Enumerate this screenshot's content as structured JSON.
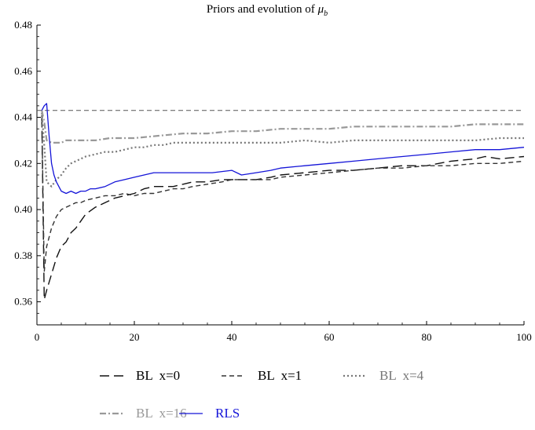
{
  "chart_data": {
    "type": "line",
    "title": "Priors and evolution of",
    "title_symbol": "μ",
    "title_subscript": "b",
    "xlabel": "",
    "ylabel": "",
    "xlim": [
      0,
      100
    ],
    "ylim": [
      0.35,
      0.48
    ],
    "xticks": [
      0,
      20,
      40,
      60,
      80,
      100
    ],
    "xtick_labels": [
      "0",
      "20",
      "40",
      "60",
      "80",
      "100"
    ],
    "yticks": [
      0.36,
      0.38,
      0.4,
      0.42,
      0.44,
      0.46,
      0.48
    ],
    "ytick_labels": [
      "0.36",
      "0.38",
      "0.40",
      "0.42",
      "0.44",
      "0.46",
      "0.48"
    ],
    "grid": false,
    "legend_position": "bottom",
    "reference_line": {
      "y": 0.443,
      "color": "#555555"
    },
    "series": [
      {
        "name": "BL  x=0",
        "color": "#111111",
        "style": "longdash",
        "x": [
          1,
          1.5,
          2,
          3,
          4,
          5,
          6,
          7,
          8,
          9,
          10,
          12,
          14,
          16,
          18,
          20,
          22,
          24,
          26,
          28,
          30,
          32,
          35,
          38,
          40,
          43,
          45,
          48,
          50,
          55,
          60,
          65,
          70,
          75,
          80,
          85,
          90,
          92,
          95,
          100
        ],
        "y": [
          0.44,
          0.361,
          0.365,
          0.372,
          0.379,
          0.384,
          0.386,
          0.39,
          0.392,
          0.395,
          0.398,
          0.401,
          0.403,
          0.405,
          0.406,
          0.407,
          0.409,
          0.41,
          0.41,
          0.41,
          0.411,
          0.412,
          0.412,
          0.413,
          0.413,
          0.413,
          0.413,
          0.414,
          0.415,
          0.416,
          0.417,
          0.417,
          0.418,
          0.419,
          0.419,
          0.421,
          0.422,
          0.423,
          0.422,
          0.423
        ]
      },
      {
        "name": "BL  x=1",
        "color": "#333333",
        "style": "dash",
        "x": [
          1,
          1.5,
          2,
          3,
          4,
          5,
          6,
          7,
          8,
          9,
          10,
          12,
          14,
          16,
          18,
          20,
          22,
          24,
          26,
          28,
          30,
          32,
          35,
          38,
          40,
          43,
          45,
          48,
          50,
          55,
          60,
          65,
          70,
          75,
          80,
          85,
          90,
          95,
          100
        ],
        "y": [
          0.441,
          0.373,
          0.384,
          0.392,
          0.397,
          0.4,
          0.401,
          0.402,
          0.403,
          0.403,
          0.404,
          0.405,
          0.406,
          0.406,
          0.407,
          0.406,
          0.407,
          0.407,
          0.408,
          0.409,
          0.409,
          0.41,
          0.411,
          0.412,
          0.413,
          0.413,
          0.413,
          0.413,
          0.414,
          0.415,
          0.416,
          0.417,
          0.418,
          0.418,
          0.419,
          0.419,
          0.42,
          0.42,
          0.421
        ]
      },
      {
        "name": "BL  x=4",
        "color": "#777777",
        "style": "dot",
        "x": [
          1,
          1.5,
          2,
          3,
          4,
          5,
          6,
          7,
          8,
          10,
          12,
          14,
          16,
          18,
          20,
          22,
          24,
          26,
          28,
          30,
          35,
          40,
          45,
          50,
          55,
          60,
          65,
          70,
          75,
          80,
          85,
          90,
          95,
          100
        ],
        "y": [
          0.442,
          0.428,
          0.412,
          0.41,
          0.413,
          0.415,
          0.418,
          0.42,
          0.421,
          0.423,
          0.424,
          0.425,
          0.425,
          0.426,
          0.427,
          0.427,
          0.428,
          0.428,
          0.429,
          0.429,
          0.429,
          0.429,
          0.429,
          0.429,
          0.43,
          0.429,
          0.43,
          0.43,
          0.43,
          0.43,
          0.43,
          0.43,
          0.431,
          0.431
        ]
      },
      {
        "name": "BL  x=16",
        "color": "#999999",
        "style": "dashdot",
        "x": [
          1,
          1.5,
          2,
          3,
          4,
          5,
          6,
          8,
          10,
          12,
          15,
          18,
          20,
          25,
          30,
          35,
          40,
          45,
          50,
          55,
          60,
          65,
          70,
          75,
          80,
          85,
          90,
          95,
          100
        ],
        "y": [
          0.443,
          0.438,
          0.43,
          0.429,
          0.429,
          0.429,
          0.43,
          0.43,
          0.43,
          0.43,
          0.431,
          0.431,
          0.431,
          0.432,
          0.433,
          0.433,
          0.434,
          0.434,
          0.435,
          0.435,
          0.435,
          0.436,
          0.436,
          0.436,
          0.436,
          0.436,
          0.437,
          0.437,
          0.437
        ]
      },
      {
        "name": "RLS",
        "color": "#1414d8",
        "style": "solid",
        "x": [
          1,
          1.5,
          2,
          2.5,
          3,
          3.5,
          4,
          5,
          6,
          7,
          8,
          9,
          10,
          11,
          12,
          14,
          16,
          18,
          20,
          22,
          24,
          26,
          28,
          30,
          33,
          36,
          40,
          42,
          45,
          48,
          50,
          55,
          60,
          65,
          70,
          75,
          80,
          85,
          90,
          95,
          100
        ],
        "y": [
          0.443,
          0.445,
          0.446,
          0.432,
          0.42,
          0.415,
          0.412,
          0.408,
          0.407,
          0.408,
          0.407,
          0.408,
          0.408,
          0.409,
          0.409,
          0.41,
          0.412,
          0.413,
          0.414,
          0.415,
          0.416,
          0.416,
          0.416,
          0.416,
          0.416,
          0.416,
          0.417,
          0.415,
          0.416,
          0.417,
          0.418,
          0.419,
          0.42,
          0.421,
          0.422,
          0.423,
          0.424,
          0.425,
          0.426,
          0.426,
          0.427
        ]
      }
    ]
  }
}
